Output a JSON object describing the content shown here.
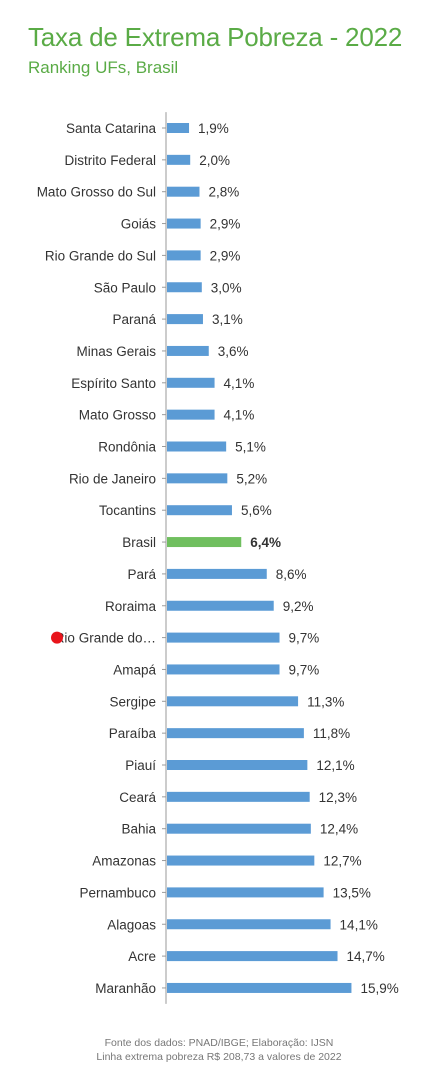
{
  "title": "Taxa de Extrema Pobreza - 2022",
  "subtitle": "Ranking UFs, Brasil",
  "footer": {
    "source": "Fonte dos dados: PNAD/IBGE; Elaboração: IJSN",
    "note": "Linha extrema pobreza R$ 208,73 a valores de 2022"
  },
  "colors": {
    "bar": "#5b9bd5",
    "highlight_bar": "#70bf5f",
    "marker": "#e8141b",
    "title": "#5aab46",
    "text": "#333333"
  },
  "chart_data": {
    "type": "bar",
    "orientation": "horizontal",
    "title": "Taxa de Extrema Pobreza - 2022",
    "subtitle": "Ranking UFs, Brasil",
    "categories": [
      "Santa Catarina",
      "Distrito Federal",
      "Mato Grosso do Sul",
      "Goiás",
      "Rio Grande do Sul",
      "São Paulo",
      "Paraná",
      "Minas Gerais",
      "Espírito Santo",
      "Mato Grosso",
      "Rondônia",
      "Rio de Janeiro",
      "Tocantins",
      "Brasil",
      "Pará",
      "Roraima",
      "Rio Grande do…",
      "Amapá",
      "Sergipe",
      "Paraíba",
      "Piauí",
      "Ceará",
      "Bahia",
      "Amazonas",
      "Pernambuco",
      "Alagoas",
      "Acre",
      "Maranhão"
    ],
    "values": [
      1.9,
      2.0,
      2.8,
      2.9,
      2.9,
      3.0,
      3.1,
      3.6,
      4.1,
      4.1,
      5.1,
      5.2,
      5.6,
      6.4,
      8.6,
      9.2,
      9.7,
      9.7,
      11.3,
      11.8,
      12.1,
      12.3,
      12.4,
      12.7,
      13.5,
      14.1,
      14.7,
      15.9
    ],
    "data_labels": [
      "1,9%",
      "2,0%",
      "2,8%",
      "2,9%",
      "2,9%",
      "3,0%",
      "3,1%",
      "3,6%",
      "4,1%",
      "4,1%",
      "5,1%",
      "5,2%",
      "5,6%",
      "6,4%",
      "8,6%",
      "9,2%",
      "9,7%",
      "9,7%",
      "11,3%",
      "11,8%",
      "12,1%",
      "12,3%",
      "12,4%",
      "12,7%",
      "13,5%",
      "14,1%",
      "14,7%",
      "15,9%"
    ],
    "highlight_category": "Brasil",
    "marked_category": "Rio Grande do…",
    "xlim": [
      0,
      16
    ],
    "grid": false,
    "legend": "none"
  }
}
